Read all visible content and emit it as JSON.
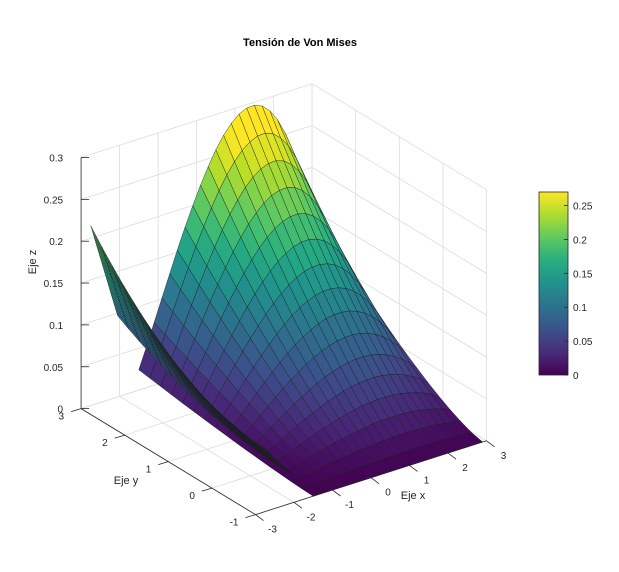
{
  "chart_data": {
    "type": "surface3d",
    "title": "Tensión de Von Mises",
    "xlabel": "Eje x",
    "ylabel": "Eje y",
    "zlabel": "Eje z",
    "xlim": [
      -3,
      3
    ],
    "ylim": [
      -1,
      3
    ],
    "zlim": [
      0,
      0.3
    ],
    "x_ticks": [
      -3,
      -2,
      -1,
      0,
      1,
      2,
      3
    ],
    "y_ticks": [
      -1,
      0,
      1,
      2,
      3
    ],
    "z_ticks": [
      0,
      0.05,
      0.1,
      0.15,
      0.2,
      0.25,
      0.3
    ],
    "x_tick_labels": [
      "-3",
      "-2",
      "-1",
      "0",
      "1",
      "2",
      "3"
    ],
    "y_tick_labels": [
      "-1",
      "0",
      "1",
      "2",
      "3"
    ],
    "z_tick_labels": [
      "0",
      "0.05",
      "0.1",
      "0.15",
      "0.2",
      "0.25",
      "0.3"
    ],
    "colormap": "viridis",
    "colorbar": {
      "range": [
        0,
        0.27
      ],
      "ticks": [
        0,
        0.05,
        0.1,
        0.15,
        0.2,
        0.25
      ],
      "tick_labels": [
        "0",
        "0.05",
        "0.1",
        "0.15",
        "0.2",
        "0.25"
      ]
    },
    "grid": true,
    "surfaces": [
      {
        "x_range": [
          -2.75,
          -2.05
        ],
        "y_range": [
          -1,
          3
        ],
        "z_peak": 0.215
      },
      {
        "x_range": [
          -1.5,
          2.9
        ],
        "y_range": [
          -1,
          3
        ],
        "z_peak": 0.27
      }
    ]
  }
}
